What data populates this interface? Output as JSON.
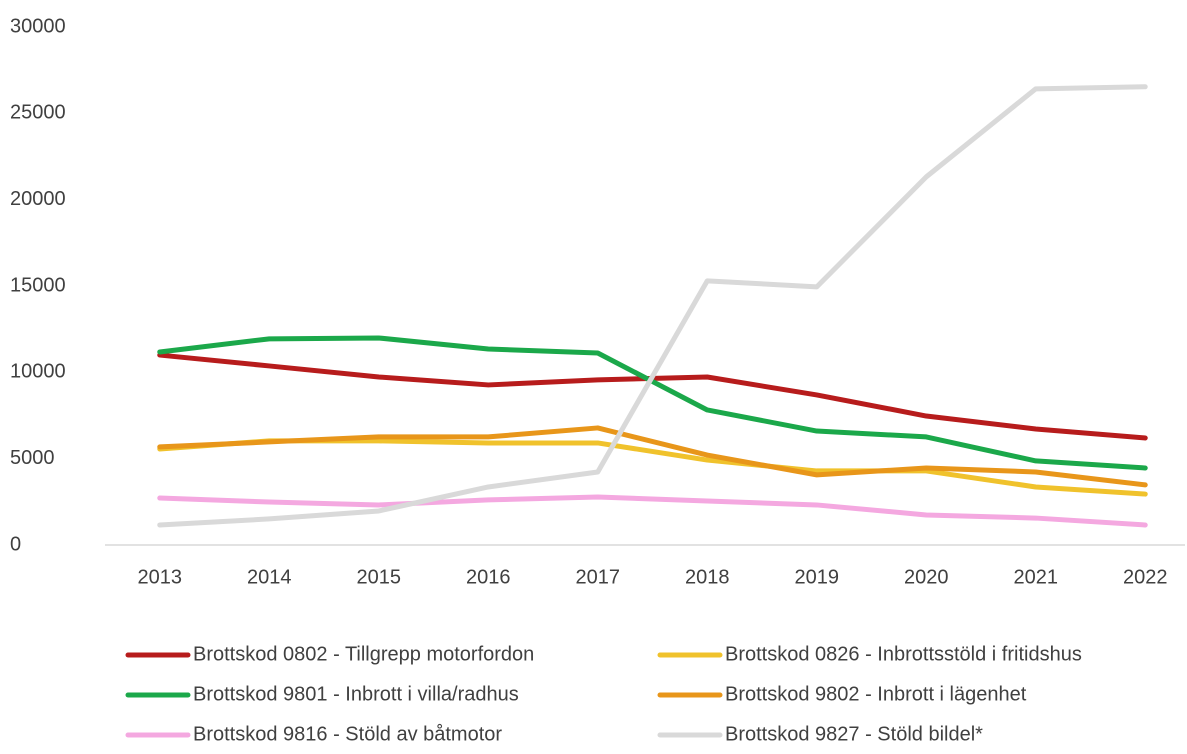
{
  "chart_data": {
    "type": "line",
    "categories": [
      "2013",
      "2014",
      "2015",
      "2016",
      "2017",
      "2018",
      "2019",
      "2020",
      "2021",
      "2022"
    ],
    "series": [
      {
        "name": "Brottskod 0802 - Tillgrepp motorfordon",
        "color": "#b71c1c",
        "values": [
          11000,
          10370,
          9730,
          9270,
          9560,
          9730,
          8690,
          7470,
          6720,
          6200
        ]
      },
      {
        "name": "Brottskod 0826 - Inbrottsstöld i fritidshus",
        "color": "#f0c22c",
        "values": [
          5560,
          6030,
          6030,
          5910,
          5910,
          4920,
          4290,
          4290,
          3360,
          2950
        ]
      },
      {
        "name": "Brottskod 9801 - Inbrott i villa/radhus",
        "color": "#1ba84a",
        "values": [
          11180,
          11940,
          11990,
          11350,
          11120,
          7820,
          6600,
          6260,
          4870,
          4460
        ]
      },
      {
        "name": "Brottskod 9802 - Inbrott i lägenhet",
        "color": "#e8961a",
        "values": [
          5680,
          5970,
          6260,
          6260,
          6780,
          5210,
          4060,
          4460,
          4230,
          3480
        ]
      },
      {
        "name": "Brottskod 9816 - Stöld av båtmotor",
        "color": "#f4a8e0",
        "values": [
          2720,
          2490,
          2320,
          2610,
          2780,
          2550,
          2320,
          1740,
          1560,
          1160
        ]
      },
      {
        "name": "Brottskod 9827 - Stöld bildel*",
        "color": "#d9d9d9",
        "values": [
          1160,
          1510,
          1970,
          3360,
          4230,
          15300,
          14950,
          21320,
          26420,
          26540
        ]
      }
    ],
    "ylim": [
      0,
      30000
    ],
    "yticks": [
      0,
      5000,
      10000,
      15000,
      20000,
      25000,
      30000
    ],
    "grid": false,
    "legend": "bottom"
  }
}
